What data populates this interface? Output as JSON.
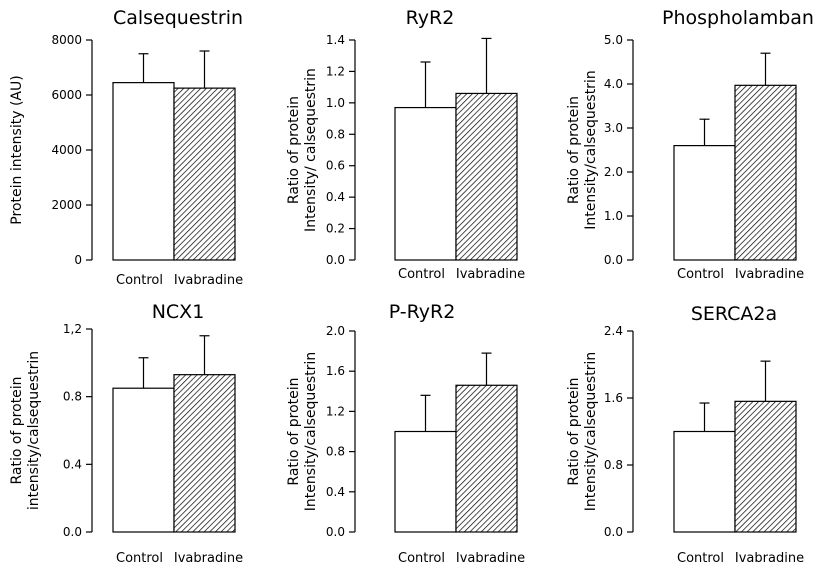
{
  "chart_data": [
    {
      "type": "bar",
      "title": "Calsequestrin",
      "ylabel": "Protein intensity (AU)",
      "categories": [
        "Control",
        "Ivabradine"
      ],
      "values": [
        6450,
        6250
      ],
      "errors": [
        1050,
        1350
      ],
      "ylim": [
        0,
        8000
      ],
      "yticks": [
        "0",
        "2000",
        "4000",
        "6000",
        "8000"
      ],
      "ytick_values": [
        0,
        2000,
        4000,
        6000,
        8000
      ]
    },
    {
      "type": "bar",
      "title": "RyR2",
      "ylabel": "Ratio of protein Intensity/ calsequestrin",
      "categories": [
        "Control",
        "Ivabradine"
      ],
      "values": [
        0.97,
        1.06
      ],
      "errors": [
        0.29,
        0.35
      ],
      "ylim": [
        0,
        1.4
      ],
      "yticks": [
        "0.0",
        "0.2",
        "0.4",
        "0.6",
        "0.8",
        "1.0",
        "1.2",
        "1.4"
      ],
      "ytick_values": [
        0,
        0.2,
        0.4,
        0.6,
        0.8,
        1.0,
        1.2,
        1.4
      ]
    },
    {
      "type": "bar",
      "title": "Phospholamban",
      "ylabel": "Ratio of protein Intensity/calsequestrin",
      "categories": [
        "Control",
        "Ivabradine"
      ],
      "values": [
        2.6,
        3.97
      ],
      "errors": [
        0.6,
        0.73
      ],
      "ylim": [
        0,
        5
      ],
      "yticks": [
        "0.0",
        "1.0",
        "2.0",
        "3.0",
        "4.0",
        "5.0"
      ],
      "ytick_values": [
        0,
        1,
        2,
        3,
        4,
        5
      ]
    },
    {
      "type": "bar",
      "title": "NCX1",
      "ylabel": "Ratio of protein intensity/calsequestrin",
      "categories": [
        "Control",
        "Ivabradine"
      ],
      "values": [
        0.85,
        0.93
      ],
      "errors": [
        0.18,
        0.23
      ],
      "ylim": [
        0,
        1.2
      ],
      "yticks": [
        "0.0",
        "0.4",
        "0.8",
        "1,2"
      ],
      "ytick_values": [
        0,
        0.4,
        0.8,
        1.2
      ]
    },
    {
      "type": "bar",
      "title": "P-RyR2",
      "ylabel": "Ratio of protein Intensity/calsequestrin",
      "categories": [
        "Control",
        "Ivabradine"
      ],
      "values": [
        1.0,
        1.46
      ],
      "errors": [
        0.36,
        0.32
      ],
      "ylim": [
        0,
        2.0
      ],
      "yticks": [
        "0.0",
        "0.4",
        "0.8",
        "1.2",
        "1.6",
        "2.0"
      ],
      "ytick_values": [
        0,
        0.4,
        0.8,
        1.2,
        1.6,
        2.0
      ]
    },
    {
      "type": "bar",
      "title": "SERCA2a",
      "ylabel": "Ratio of protein Intensity/calsequestrin",
      "categories": [
        "Control",
        "Ivabradine"
      ],
      "values": [
        1.2,
        1.56
      ],
      "errors": [
        0.34,
        0.48
      ],
      "ylim": [
        0,
        2.4
      ],
      "yticks": [
        "0.0",
        "0.8",
        "1.6",
        "2.4"
      ],
      "ytick_values": [
        0,
        0.8,
        1.6,
        2.4
      ]
    }
  ]
}
